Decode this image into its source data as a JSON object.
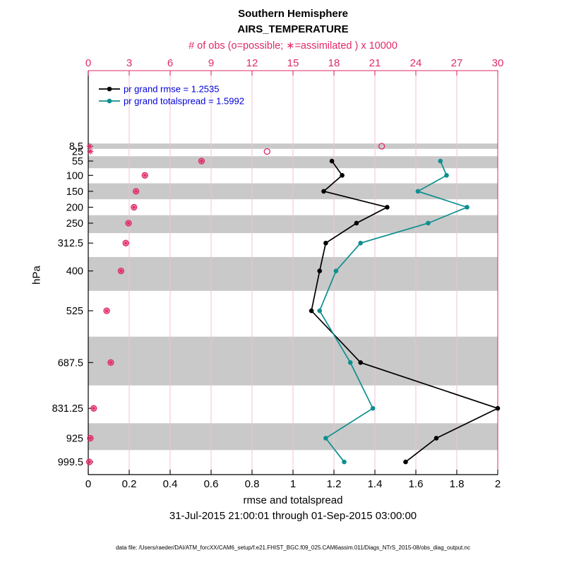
{
  "figure": {
    "title_line1": "Southern Hemisphere",
    "title_line2": "AIRS_TEMPERATURE",
    "top_axis_label": "# of obs (o=possible; ∗=assimilated ) x 10000",
    "xlabel": "rmse and totalspread",
    "ylabel": "hPa",
    "date_range": "31-Jul-2015 21:00:01 through 01-Sep-2015 03:00:00",
    "data_file": "data file: /Users/raeder/DAI/ATM_forcXX/CAM6_setup/f.e21.FHIST_BGC.f09_025.CAM6assim.011/Diags_NTrS_2015-08/obs_diag_output.nc"
  },
  "colors": {
    "obs_pink": "#e12a68",
    "rmse_black": "#000000",
    "spread_teal": "#0e8f8f",
    "legend_text_blue": "#0000dd",
    "band_gray": "#c9c9c9",
    "grid_pink": "#f0c2d4"
  },
  "legend": {
    "entries": [
      {
        "label": "pr grand rmse = 1.2535",
        "color_key": "rmse_black"
      },
      {
        "label": "pr grand totalspread = 1.5992",
        "color_key": "spread_teal"
      }
    ]
  },
  "chart_data": {
    "type": "line",
    "title": "Southern Hemisphere AIRS_TEMPERATURE",
    "xlabel": "rmse and totalspread",
    "ylabel": "hPa",
    "top_xlabel": "# of obs (o=possible; *=assimilated ) x 10000",
    "xlim": [
      0,
      2
    ],
    "top_xlim": [
      0,
      30
    ],
    "x_tick_values": [
      0,
      0.2,
      0.4,
      0.6,
      0.8,
      1,
      1.2,
      1.4,
      1.6,
      1.8,
      2
    ],
    "x_tick_labels": [
      "0",
      "0.2",
      "0.4",
      "0.6",
      "0.8",
      "1",
      "1.2",
      "1.4",
      "1.6",
      "1.8",
      "2"
    ],
    "top_tick_values": [
      0,
      3,
      6,
      9,
      12,
      15,
      18,
      21,
      24,
      27,
      30
    ],
    "top_tick_labels": [
      "0",
      "3",
      "6",
      "9",
      "12",
      "15",
      "18",
      "21",
      "24",
      "27",
      "30"
    ],
    "pressure_levels": [
      8.5,
      25,
      55,
      100,
      150,
      200,
      250,
      312.5,
      400,
      525,
      687.5,
      831.25,
      925,
      999.5
    ],
    "pressure_tick_labels": [
      "8.5",
      "25",
      "55",
      "100",
      "150",
      "200",
      "250",
      "312.5",
      "400",
      "525",
      "687.5",
      "831.25",
      "925",
      "999.5"
    ],
    "grid": "vertical-only",
    "legend_position": "top-left-inside",
    "series": [
      {
        "name": "pr grand rmse",
        "summary_value": 1.2535,
        "axis": "bottom",
        "levels": [
          55,
          100,
          150,
          200,
          250,
          312.5,
          400,
          525,
          687.5,
          831.25,
          925,
          999.5
        ],
        "values": [
          1.19,
          1.24,
          1.15,
          1.46,
          1.31,
          1.16,
          1.13,
          1.09,
          1.33,
          2.0,
          1.7,
          1.55
        ]
      },
      {
        "name": "pr grand totalspread",
        "summary_value": 1.5992,
        "axis": "bottom",
        "levels": [
          55,
          100,
          150,
          200,
          250,
          312.5,
          400,
          525,
          687.5,
          831.25,
          925,
          999.5
        ],
        "values": [
          1.72,
          1.75,
          1.61,
          1.85,
          1.66,
          1.33,
          1.21,
          1.13,
          1.28,
          1.39,
          1.16,
          1.25
        ]
      }
    ],
    "obs_counts_x10000": {
      "axis": "top",
      "levels": [
        8.5,
        25,
        55,
        100,
        150,
        200,
        250,
        312.5,
        400,
        525,
        687.5,
        831.25,
        925,
        999.5
      ],
      "possible": [
        21.5,
        13.1,
        8.3,
        4.15,
        3.5,
        3.35,
        2.95,
        2.75,
        2.4,
        1.35,
        1.65,
        0.4,
        0.15,
        0.08
      ],
      "assimilated": [
        0.1,
        0.15,
        8.3,
        4.15,
        3.5,
        3.35,
        2.95,
        2.75,
        2.4,
        1.35,
        1.65,
        0.4,
        0.15,
        0.08
      ]
    },
    "shaded_band_pressure_edges": [
      [
        0,
        16.75
      ],
      [
        40,
        77.5
      ],
      [
        125,
        175
      ],
      [
        225,
        281.25
      ],
      [
        356.25,
        462.5
      ],
      [
        606.25,
        759.375
      ],
      [
        878.125,
        962.25
      ]
    ]
  }
}
